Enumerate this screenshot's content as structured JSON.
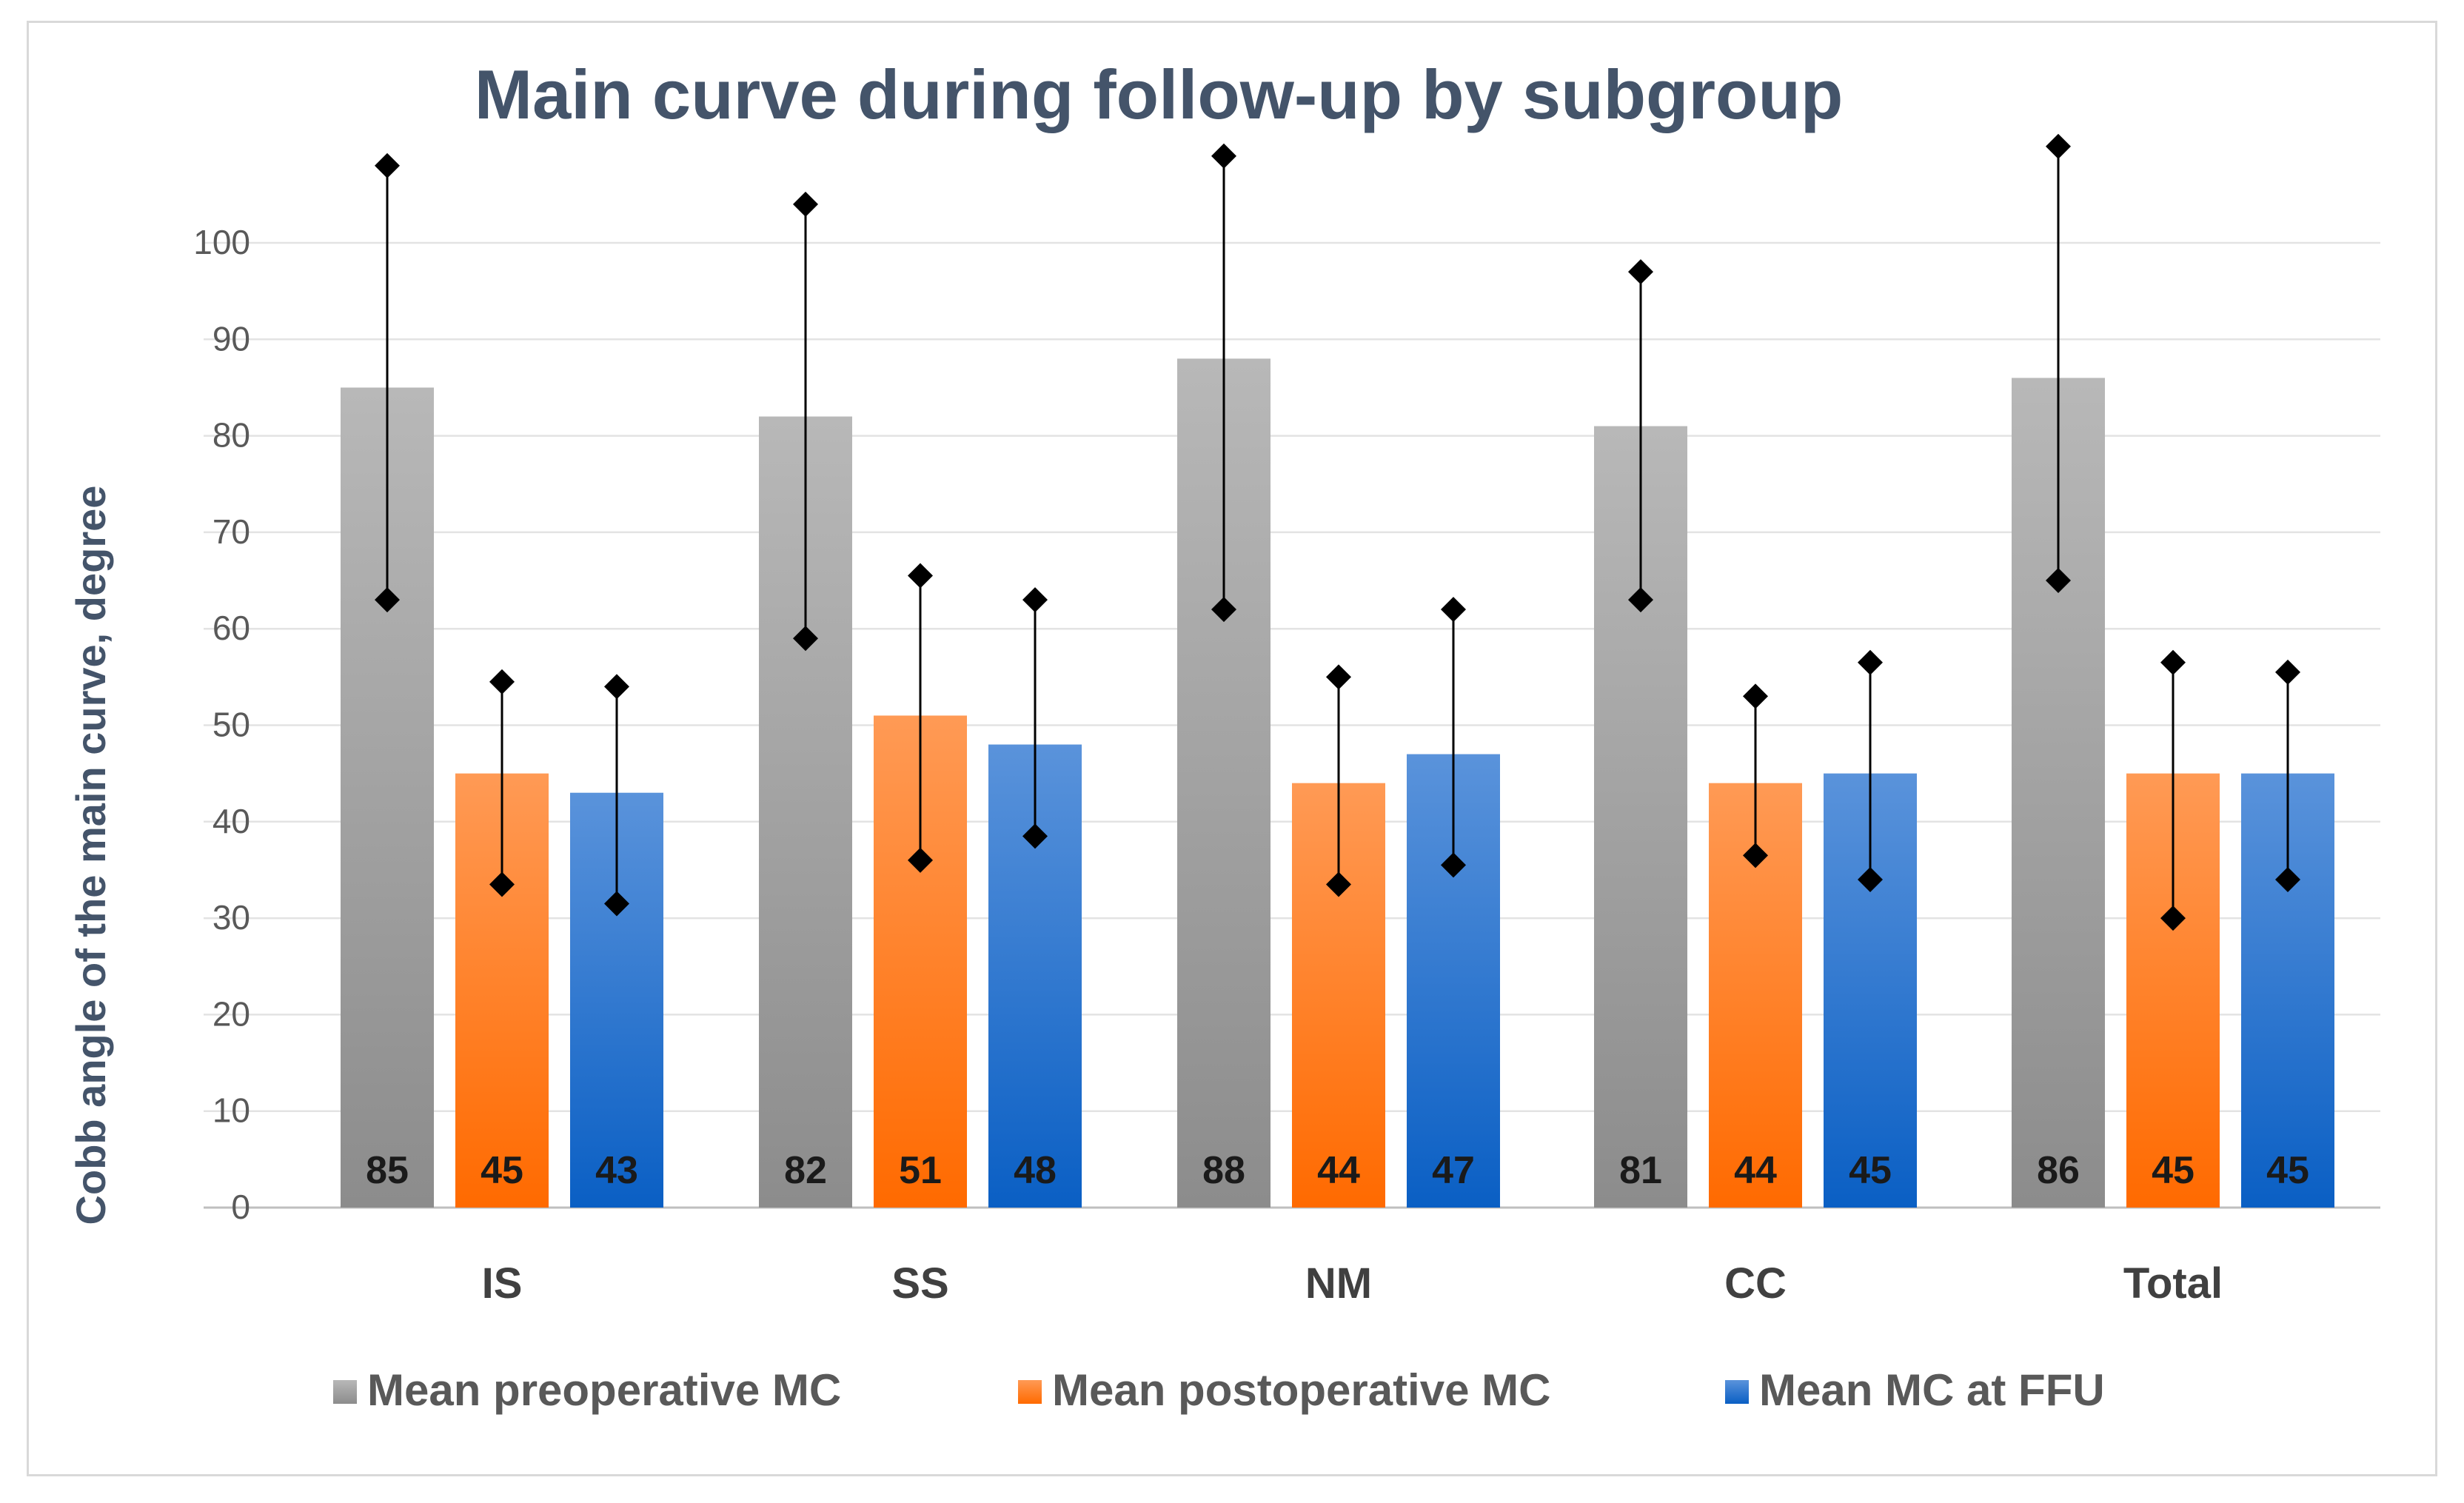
{
  "chart_data": {
    "type": "bar",
    "title": "Main curve during follow-up by subgroup",
    "xlabel": "",
    "ylabel": "Cobb angle of the main curve, degree",
    "ylim": [
      0,
      110
    ],
    "yticks": [
      0,
      10,
      20,
      30,
      40,
      50,
      60,
      70,
      80,
      90,
      100
    ],
    "grid": true,
    "legend_position": "bottom",
    "categories": [
      "IS",
      "SS",
      "NM",
      "CC",
      "Total"
    ],
    "series": [
      {
        "name": "Mean preoperative MC",
        "color": "#a6a6a6",
        "values": [
          85,
          82,
          88,
          81,
          86
        ],
        "error_upper": [
          108,
          104,
          109,
          97,
          110
        ],
        "error_lower": [
          63,
          59,
          62,
          63,
          65
        ]
      },
      {
        "name": "Mean postoperative MC",
        "color": "#ff7f27",
        "values": [
          45,
          51,
          44,
          44,
          45
        ],
        "error_upper": [
          54.5,
          65.5,
          55,
          53,
          56.5
        ],
        "error_lower": [
          33.5,
          36,
          33.5,
          36.5,
          30
        ]
      },
      {
        "name": "Mean MC at FFU",
        "color": "#2e75cf",
        "values": [
          43,
          48,
          47,
          45,
          45
        ],
        "error_upper": [
          54,
          63,
          62,
          56.5,
          55.5
        ],
        "error_lower": [
          31.5,
          38.5,
          35.5,
          34,
          34
        ]
      }
    ]
  }
}
